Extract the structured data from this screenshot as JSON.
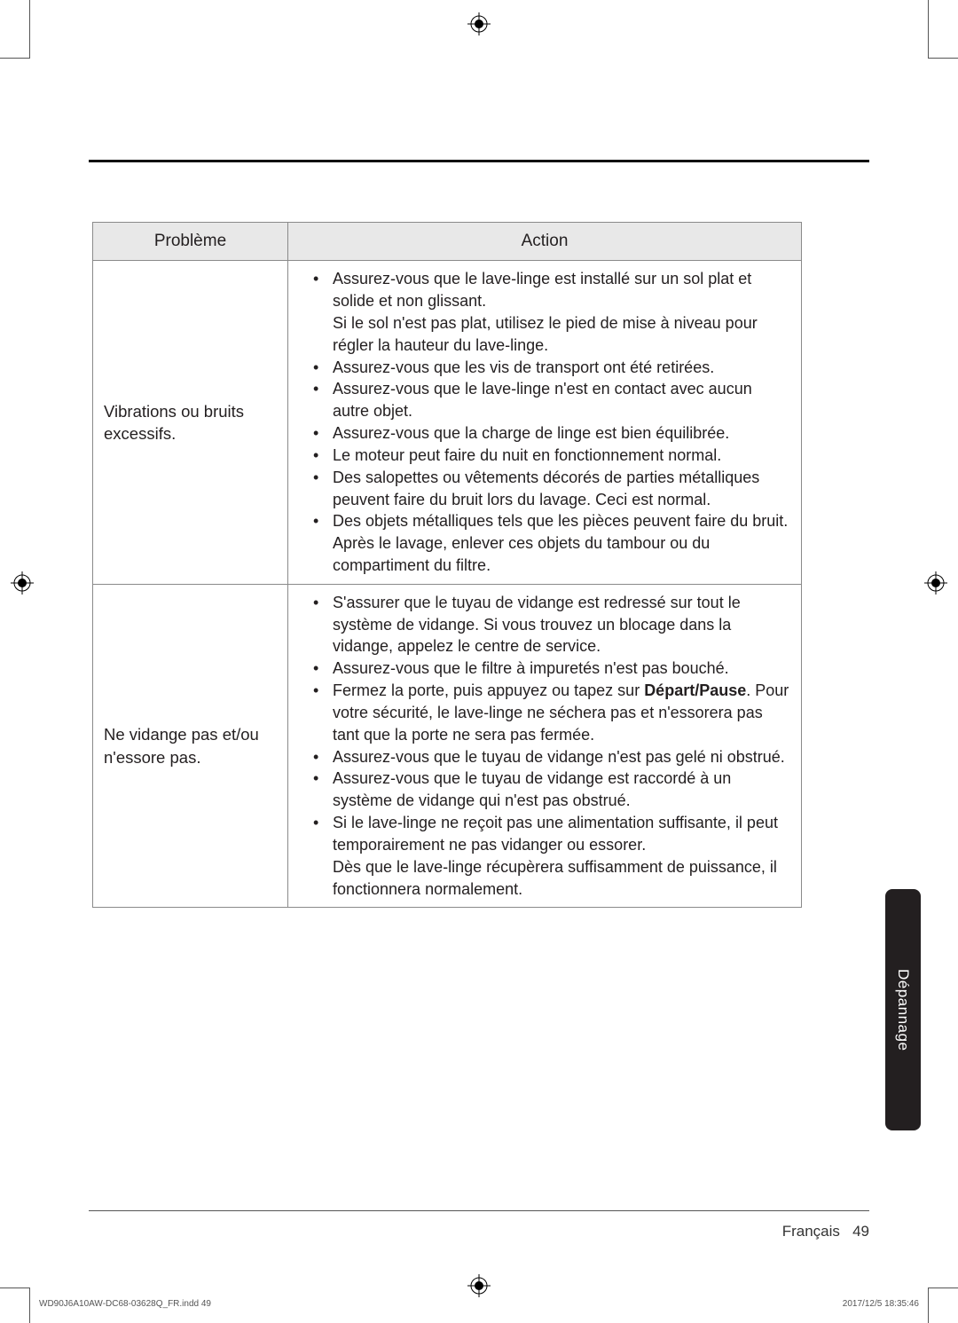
{
  "table": {
    "headers": {
      "problem": "Problème",
      "action": "Action"
    },
    "rows": [
      {
        "problem": "Vibrations ou bruits excessifs.",
        "bullets": [
          {
            "text": "Assurez-vous que le lave-linge est installé sur un sol plat et solide et non glissant.",
            "sub": [
              "Si le sol n'est pas plat, utilisez le pied de mise à niveau pour régler la hauteur du lave-linge."
            ]
          },
          {
            "text": "Assurez-vous que les vis de transport ont été retirées."
          },
          {
            "text": "Assurez-vous que le lave-linge n'est en contact avec aucun autre objet."
          },
          {
            "text": "Assurez-vous que la charge de linge est bien équilibrée."
          },
          {
            "text": "Le moteur peut faire du nuit en fonctionnement normal."
          },
          {
            "text": "Des salopettes ou vêtements décorés de parties métalliques peuvent faire du bruit lors du lavage. Ceci est normal."
          },
          {
            "text": "Des objets métalliques tels que les pièces peuvent faire du bruit. Après le lavage, enlever ces objets du tambour ou du compartiment du filtre."
          }
        ]
      },
      {
        "problem": "Ne vidange pas et/ou n'essore pas.",
        "bullets": [
          {
            "text": "S'assurer que le tuyau de vidange est redressé sur tout le système de vidange. Si vous trouvez un blocage dans la vidange, appelez le centre de service."
          },
          {
            "text": "Assurez-vous que le filtre à impuretés n'est pas bouché."
          },
          {
            "html": "Fermez la porte, puis appuyez ou tapez sur <span class=\"bold\">Départ/Pause</span>. Pour votre sécurité, le lave-linge ne séchera pas et n'essorera pas tant que la porte ne sera pas fermée."
          },
          {
            "text": "Assurez-vous que le tuyau de vidange n'est pas gelé ni obstrué."
          },
          {
            "text": "Assurez-vous que le tuyau de vidange est raccordé à un système de vidange qui n'est pas obstrué."
          },
          {
            "text": "Si le lave-linge ne reçoit pas une alimentation suffisante, il peut temporairement ne pas vidanger ou essorer.",
            "sub": [
              "Dès que le lave-linge récupèrera suffisamment de puissance, il fonctionnera normalement."
            ]
          }
        ]
      }
    ]
  },
  "side_tab": "Dépannage",
  "footer": {
    "language": "Français",
    "page": "49"
  },
  "slug": {
    "left": "WD90J6A10AW-DC68-03628Q_FR.indd   49",
    "right": "2017/12/5   18:35:46"
  },
  "colors": {
    "rule_thick": "#111111",
    "rule_thin": "#555555",
    "table_border": "#8a8a8a",
    "table_header_bg": "#e8e8e8",
    "tab_bg": "#231f20",
    "text": "#231f20"
  },
  "fontsizes": {
    "body": 18,
    "header": 19,
    "footer": 17,
    "tab": 17,
    "slug": 10
  }
}
